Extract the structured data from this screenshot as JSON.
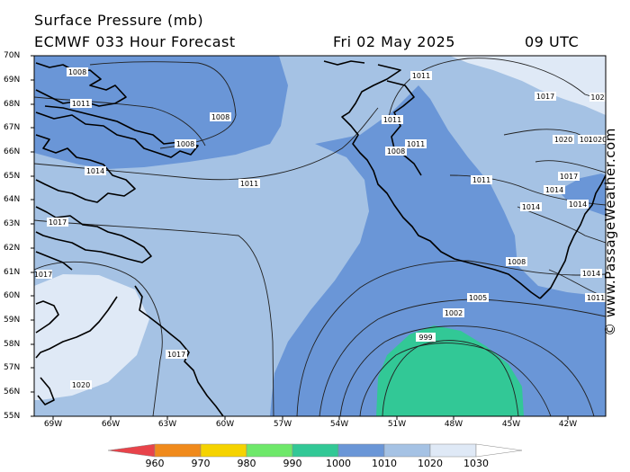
{
  "header": {
    "title": "Surface Pressure (mb)",
    "model": "ECMWF 033 Hour Forecast",
    "date": "Fri 02 May 2025",
    "time": "09 UTC"
  },
  "credit": "© www.PassageWeather.com",
  "lat_labels": [
    "70N",
    "69N",
    "68N",
    "67N",
    "66N",
    "65N",
    "64N",
    "63N",
    "62N",
    "61N",
    "60N",
    "59N",
    "58N",
    "57N",
    "56N",
    "55N"
  ],
  "lon_labels": [
    "69W",
    "66W",
    "63W",
    "60W",
    "57W",
    "54W",
    "51W",
    "48W",
    "45W",
    "42W"
  ],
  "colorbar": {
    "ticks": [
      "960",
      "970",
      "980",
      "990",
      "1000",
      "1010",
      "1020",
      "1030"
    ],
    "colors": [
      "#e8434a",
      "#f08a1c",
      "#f5d300",
      "#6ee86a",
      "#32c896",
      "#6a96d7",
      "#a5c2e4",
      "#dfe9f6"
    ]
  },
  "isobar_labels": [
    "1008",
    "1011",
    "1008",
    "1008",
    "1014",
    "1011",
    "1017",
    "1011",
    "1011",
    "1008",
    "1011",
    "1020",
    "1017",
    "1017",
    "1020",
    "1020",
    "1014",
    "1011",
    "1014",
    "1014",
    "1017",
    "1014",
    "1011",
    "1008",
    "1005",
    "1002",
    "999",
    "1017",
    "1020",
    "1020",
    "102"
  ]
}
